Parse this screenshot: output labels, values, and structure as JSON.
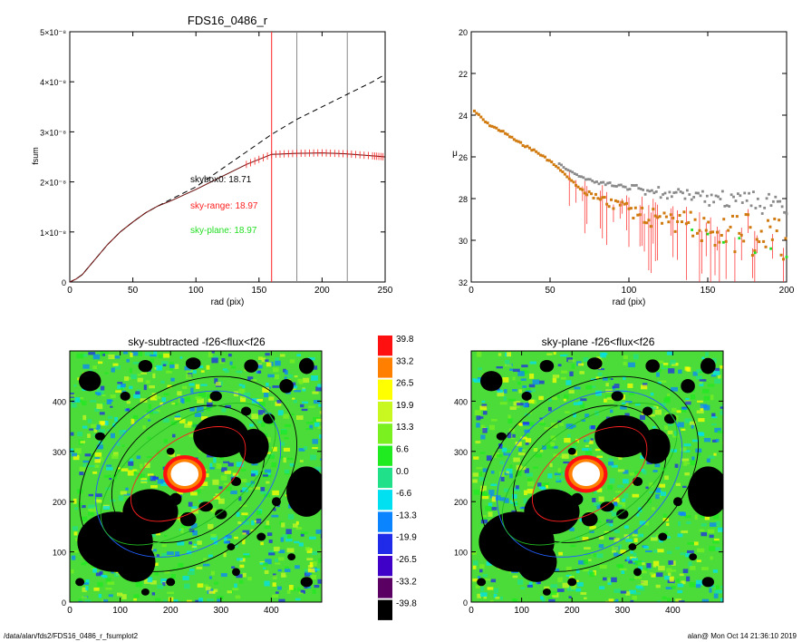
{
  "footer": {
    "left": "/data/alan/fds2/FDS16_0486_r_fsumplot2",
    "right": "alan@  Mon Oct 14 21:36:10 2019"
  },
  "colors": {
    "sky_range": "#ff2020",
    "sky_plane": "#22dd22",
    "colorbar": [
      "#000000",
      "#5a0062",
      "#3f00c8",
      "#1f2be8",
      "#0a85ff",
      "#00e0f0",
      "#20e08a",
      "#20ea20",
      "#7af020",
      "#c8f820",
      "#ffff00",
      "#ff8000",
      "#ff1010"
    ]
  },
  "chart_data": [
    {
      "type": "line",
      "title": "FDS16_0486_r",
      "xlabel": "rad (pix)",
      "ylabel": "fsum",
      "xlim": [
        0,
        250
      ],
      "ylim": [
        0,
        5e-08
      ],
      "x_ticks": [
        "0",
        "50",
        "100",
        "150",
        "200",
        "250"
      ],
      "y_ticks": [
        "0",
        "1×10⁻⁸",
        "2×10⁻⁸",
        "3×10⁻⁸",
        "4×10⁻⁸",
        "5×10⁻⁸"
      ],
      "y_tick_values": [
        0,
        1e-08,
        2e-08,
        3e-08,
        4e-08,
        5e-08
      ],
      "vlines": [
        160,
        180,
        220
      ],
      "annotations": [
        {
          "text": "skybox0: 18.71",
          "color": "black"
        },
        {
          "text": "sky-range: 18.97",
          "color": "red"
        },
        {
          "text": "sky-plane: 18.97",
          "color": "green"
        }
      ],
      "series": [
        {
          "style": "dashed",
          "x": [
            0,
            5,
            10,
            20,
            30,
            40,
            50,
            60,
            70,
            80,
            100,
            120,
            140,
            160,
            180,
            200,
            220,
            240,
            250
          ],
          "y": [
            0,
            6e-10,
            1.5e-09,
            4.5e-09,
            7.5e-09,
            1e-08,
            1.2e-08,
            1.38e-08,
            1.52e-08,
            1.65e-08,
            1.9e-08,
            2.25e-08,
            2.6e-08,
            2.95e-08,
            3.25e-08,
            3.5e-08,
            3.75e-08,
            4e-08,
            4.15e-08
          ]
        },
        {
          "style": "solid",
          "x": [
            0,
            5,
            10,
            20,
            30,
            40,
            50,
            60,
            70,
            80,
            100,
            120,
            140,
            160,
            180,
            200,
            220,
            240,
            250
          ],
          "y": [
            0,
            6e-10,
            1.5e-09,
            4.5e-09,
            7.5e-09,
            1e-08,
            1.2e-08,
            1.38e-08,
            1.52e-08,
            1.62e-08,
            1.85e-08,
            2.1e-08,
            2.35e-08,
            2.55e-08,
            2.57e-08,
            2.58e-08,
            2.56e-08,
            2.52e-08,
            2.5e-08
          ]
        }
      ]
    },
    {
      "type": "scatter",
      "xlabel": "rad (pix)",
      "ylabel": "μ",
      "xlim": [
        0,
        200
      ],
      "ylim": [
        32,
        20
      ],
      "x_ticks": [
        "0",
        "50",
        "100",
        "150",
        "200"
      ],
      "y_ticks": [
        "20",
        "22",
        "24",
        "26",
        "28",
        "30",
        "32"
      ],
      "series": [
        {
          "color": "gray",
          "x": [
            2,
            10,
            20,
            30,
            40,
            50,
            60,
            70,
            80,
            90,
            100,
            110,
            120,
            130,
            140,
            150,
            160,
            170,
            180,
            190,
            200
          ],
          "y": [
            23.8,
            24.4,
            24.8,
            25.2,
            25.6,
            26.0,
            26.6,
            27.0,
            27.2,
            27.4,
            27.5,
            27.6,
            27.7,
            27.8,
            27.9,
            28.0,
            28.0,
            28.1,
            28.2,
            28.3,
            28.4
          ]
        },
        {
          "color": "orange",
          "x": [
            2,
            10,
            20,
            30,
            40,
            50,
            60,
            70,
            80,
            90,
            100,
            110,
            120,
            130,
            140,
            150,
            160,
            170,
            180,
            190,
            200
          ],
          "y": [
            23.8,
            24.4,
            24.8,
            25.3,
            25.7,
            26.2,
            26.9,
            27.6,
            28.0,
            28.3,
            28.6,
            28.8,
            29.0,
            29.2,
            29.3,
            29.4,
            29.6,
            29.7,
            29.8,
            29.9,
            30.0
          ]
        },
        {
          "color": "green",
          "x": [
            140,
            150,
            160,
            170,
            180,
            190,
            200
          ],
          "y": [
            29.5,
            29.7,
            30.1,
            29.9,
            30.6,
            30.4,
            30.8
          ]
        }
      ]
    },
    {
      "type": "heatmap",
      "title": "sky-subtracted -f26<flux<f26",
      "xlim": [
        0,
        500
      ],
      "ylim": [
        0,
        500
      ],
      "x_ticks": [
        "0",
        "100",
        "200",
        "300",
        "400"
      ],
      "y_ticks": [
        "0",
        "100",
        "200",
        "300",
        "400"
      ]
    },
    {
      "type": "heatmap",
      "title": "sky-plane -f26<flux<f26",
      "xlim": [
        0,
        500
      ],
      "ylim": [
        0,
        500
      ],
      "x_ticks": [
        "0",
        "100",
        "200",
        "300",
        "400"
      ],
      "y_ticks": [
        "0",
        "100",
        "200",
        "300",
        "400"
      ]
    }
  ],
  "colorbar": {
    "labels": [
      "39.8",
      "33.2",
      "26.5",
      "19.9",
      "13.3",
      "6.6",
      "0.0",
      "-6.6",
      "-13.3",
      "-19.9",
      "-26.5",
      "-33.2",
      "-39.8"
    ]
  }
}
